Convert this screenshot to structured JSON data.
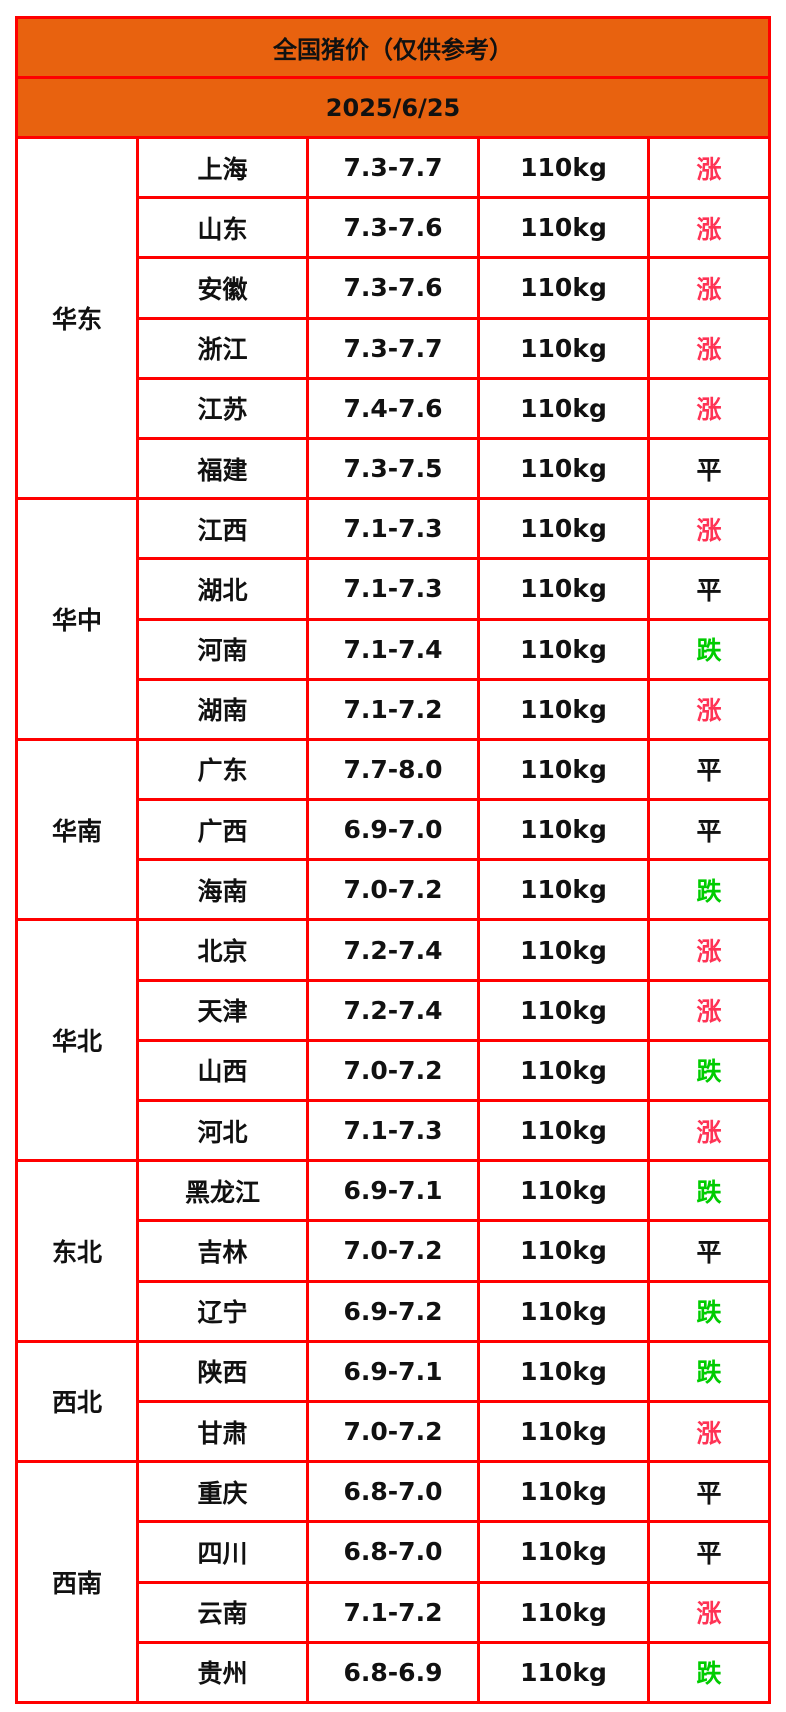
{
  "title": "全国猪价（仅供参考）",
  "date": "2025/6/25",
  "colors": {
    "header_bg": "#e8620f",
    "border": "#ff0000",
    "涨": "#ff3355",
    "跌": "#00cc00",
    "平": "#111111"
  },
  "regions": [
    {
      "name": "华东",
      "rows": [
        {
          "province": "上海",
          "price": "7.3-7.7",
          "weight": "110kg",
          "trend": "涨"
        },
        {
          "province": "山东",
          "price": "7.3-7.6",
          "weight": "110kg",
          "trend": "涨"
        },
        {
          "province": "安徽",
          "price": "7.3-7.6",
          "weight": "110kg",
          "trend": "涨"
        },
        {
          "province": "浙江",
          "price": "7.3-7.7",
          "weight": "110kg",
          "trend": "涨"
        },
        {
          "province": "江苏",
          "price": "7.4-7.6",
          "weight": "110kg",
          "trend": "涨"
        },
        {
          "province": "福建",
          "price": "7.3-7.5",
          "weight": "110kg",
          "trend": "平"
        }
      ]
    },
    {
      "name": "华中",
      "rows": [
        {
          "province": "江西",
          "price": "7.1-7.3",
          "weight": "110kg",
          "trend": "涨"
        },
        {
          "province": "湖北",
          "price": "7.1-7.3",
          "weight": "110kg",
          "trend": "平"
        },
        {
          "province": "河南",
          "price": "7.1-7.4",
          "weight": "110kg",
          "trend": "跌"
        },
        {
          "province": "湖南",
          "price": "7.1-7.2",
          "weight": "110kg",
          "trend": "涨"
        }
      ]
    },
    {
      "name": "华南",
      "rows": [
        {
          "province": "广东",
          "price": "7.7-8.0",
          "weight": "110kg",
          "trend": "平"
        },
        {
          "province": "广西",
          "price": "6.9-7.0",
          "weight": "110kg",
          "trend": "平"
        },
        {
          "province": "海南",
          "price": "7.0-7.2",
          "weight": "110kg",
          "trend": "跌"
        }
      ]
    },
    {
      "name": "华北",
      "rows": [
        {
          "province": "北京",
          "price": "7.2-7.4",
          "weight": "110kg",
          "trend": "涨"
        },
        {
          "province": "天津",
          "price": "7.2-7.4",
          "weight": "110kg",
          "trend": "涨"
        },
        {
          "province": "山西",
          "price": "7.0-7.2",
          "weight": "110kg",
          "trend": "跌"
        },
        {
          "province": "河北",
          "price": "7.1-7.3",
          "weight": "110kg",
          "trend": "涨"
        }
      ]
    },
    {
      "name": "东北",
      "rows": [
        {
          "province": "黑龙江",
          "price": "6.9-7.1",
          "weight": "110kg",
          "trend": "跌"
        },
        {
          "province": "吉林",
          "price": "7.0-7.2",
          "weight": "110kg",
          "trend": "平"
        },
        {
          "province": "辽宁",
          "price": "6.9-7.2",
          "weight": "110kg",
          "trend": "跌"
        }
      ]
    },
    {
      "name": "西北",
      "rows": [
        {
          "province": "陕西",
          "price": "6.9-7.1",
          "weight": "110kg",
          "trend": "跌"
        },
        {
          "province": "甘肃",
          "price": "7.0-7.2",
          "weight": "110kg",
          "trend": "涨"
        }
      ]
    },
    {
      "name": "西南",
      "rows": [
        {
          "province": "重庆",
          "price": "6.8-7.0",
          "weight": "110kg",
          "trend": "平"
        },
        {
          "province": "四川",
          "price": "6.8-7.0",
          "weight": "110kg",
          "trend": "平"
        },
        {
          "province": "云南",
          "price": "7.1-7.2",
          "weight": "110kg",
          "trend": "涨"
        },
        {
          "province": "贵州",
          "price": "6.8-6.9",
          "weight": "110kg",
          "trend": "跌"
        }
      ]
    }
  ]
}
